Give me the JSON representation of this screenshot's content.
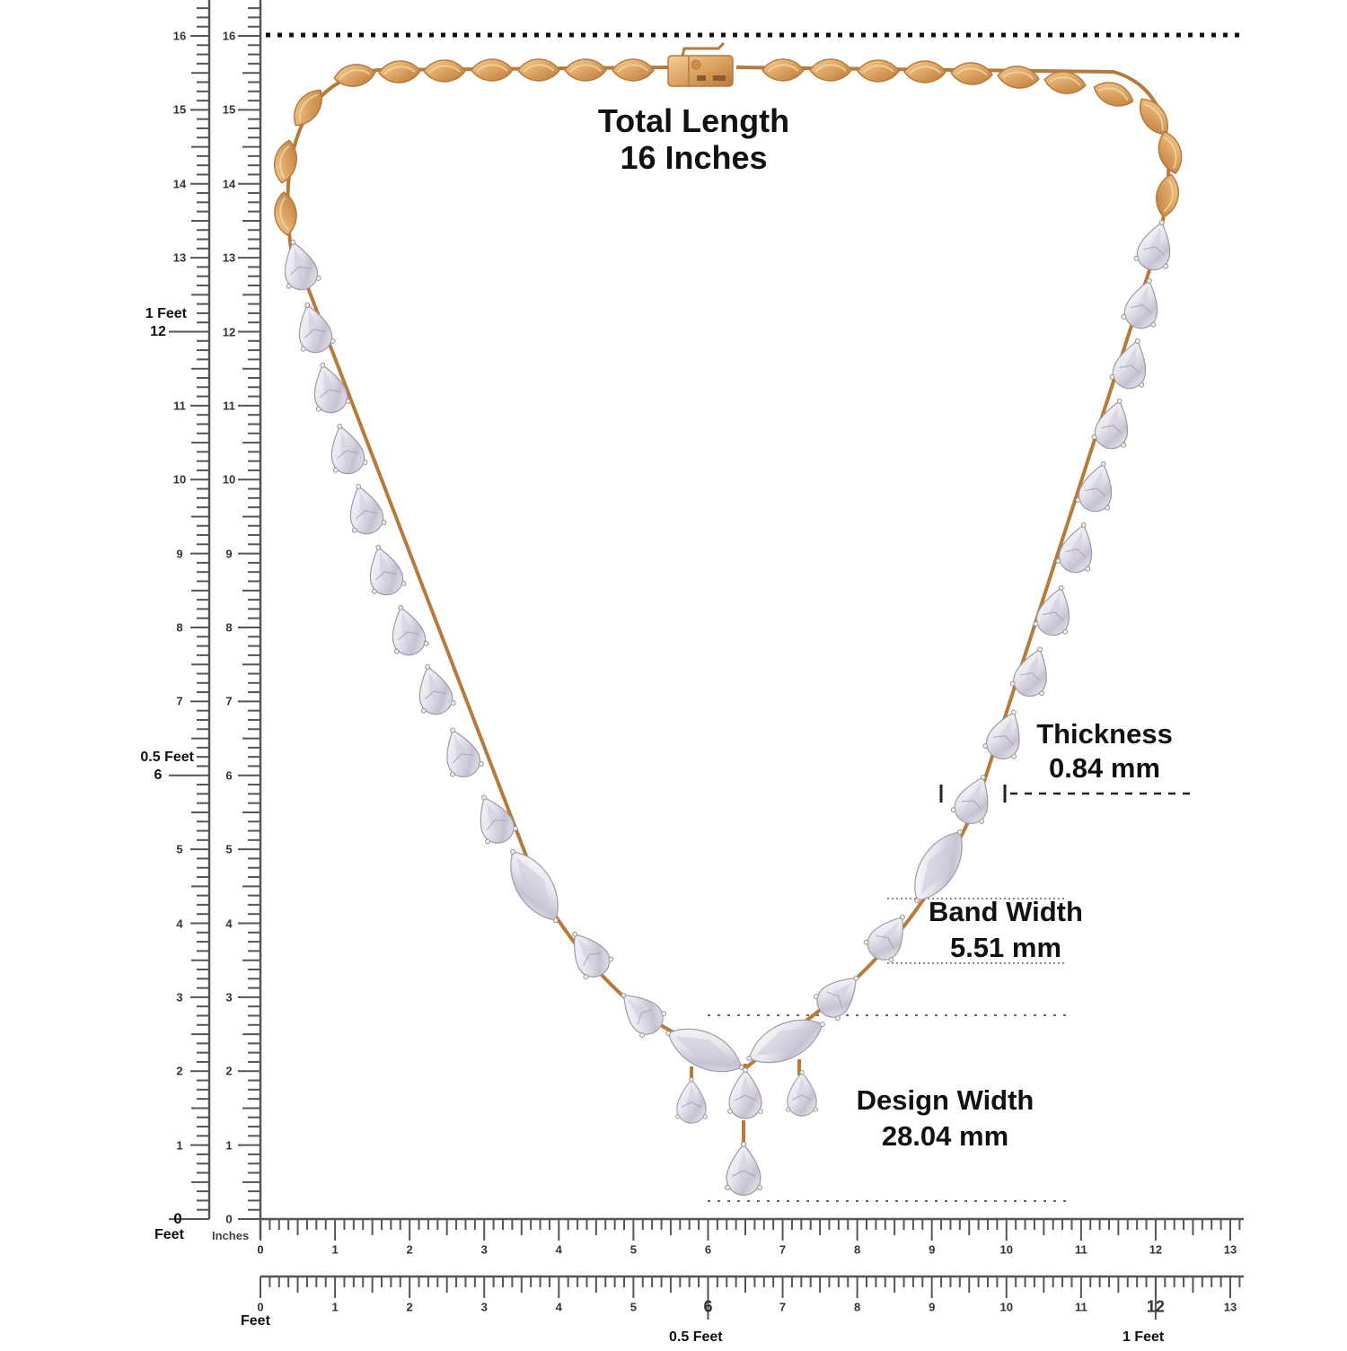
{
  "title": {
    "line1": "Total Length",
    "line2": "16 Inches"
  },
  "annotations": {
    "thickness": {
      "label": "Thickness",
      "value": "0.84 mm"
    },
    "band_width": {
      "label": "Band Width",
      "value": "5.51 mm"
    },
    "design_width": {
      "label": "Design Width",
      "value": "28.04 mm"
    }
  },
  "rulers": {
    "vertical_feet": {
      "ticks": [
        "0",
        "1",
        "2",
        "3",
        "4",
        "5",
        "6",
        "7",
        "8",
        "9",
        "10",
        "11",
        "12",
        "13",
        "14",
        "15",
        "16"
      ],
      "unit_label": "Feet",
      "markers": [
        {
          "at": "6",
          "label": "0.5 Feet"
        },
        {
          "at": "12",
          "label": "1 Feet"
        }
      ]
    },
    "vertical_inches": {
      "ticks": [
        "0",
        "1",
        "2",
        "3",
        "4",
        "5",
        "6",
        "7",
        "8",
        "9",
        "10",
        "11",
        "12",
        "13",
        "14",
        "15",
        "16"
      ],
      "unit_label": "Inches"
    },
    "horizontal_inches": {
      "ticks": [
        "0",
        "1",
        "2",
        "3",
        "4",
        "5",
        "6",
        "7",
        "8",
        "9",
        "10",
        "11",
        "12",
        "13"
      ]
    },
    "horizontal_feet": {
      "ticks": [
        "0",
        "1",
        "2",
        "3",
        "4",
        "5",
        "6",
        "7",
        "8",
        "9",
        "10",
        "11",
        "12",
        "13"
      ],
      "unit_label": "Feet",
      "markers": [
        {
          "at": "6",
          "label": "0.5 Feet"
        },
        {
          "at": "12",
          "label": "1 Feet"
        }
      ]
    }
  },
  "colors": {
    "gold": "#d9a05b",
    "gold_dark": "#b87a3a",
    "gold_light": "#f0c98e",
    "diamond": "#e8e6ee",
    "diamond_shade": "#b9b4c4",
    "ruler": "#555555",
    "text": "#111111"
  },
  "icons": {
    "clasp": "box-clasp-icon",
    "gold-link": "leaf-link-icon",
    "pear-stone": "pear-diamond-icon",
    "marquise-stone": "marquise-diamond-icon"
  }
}
